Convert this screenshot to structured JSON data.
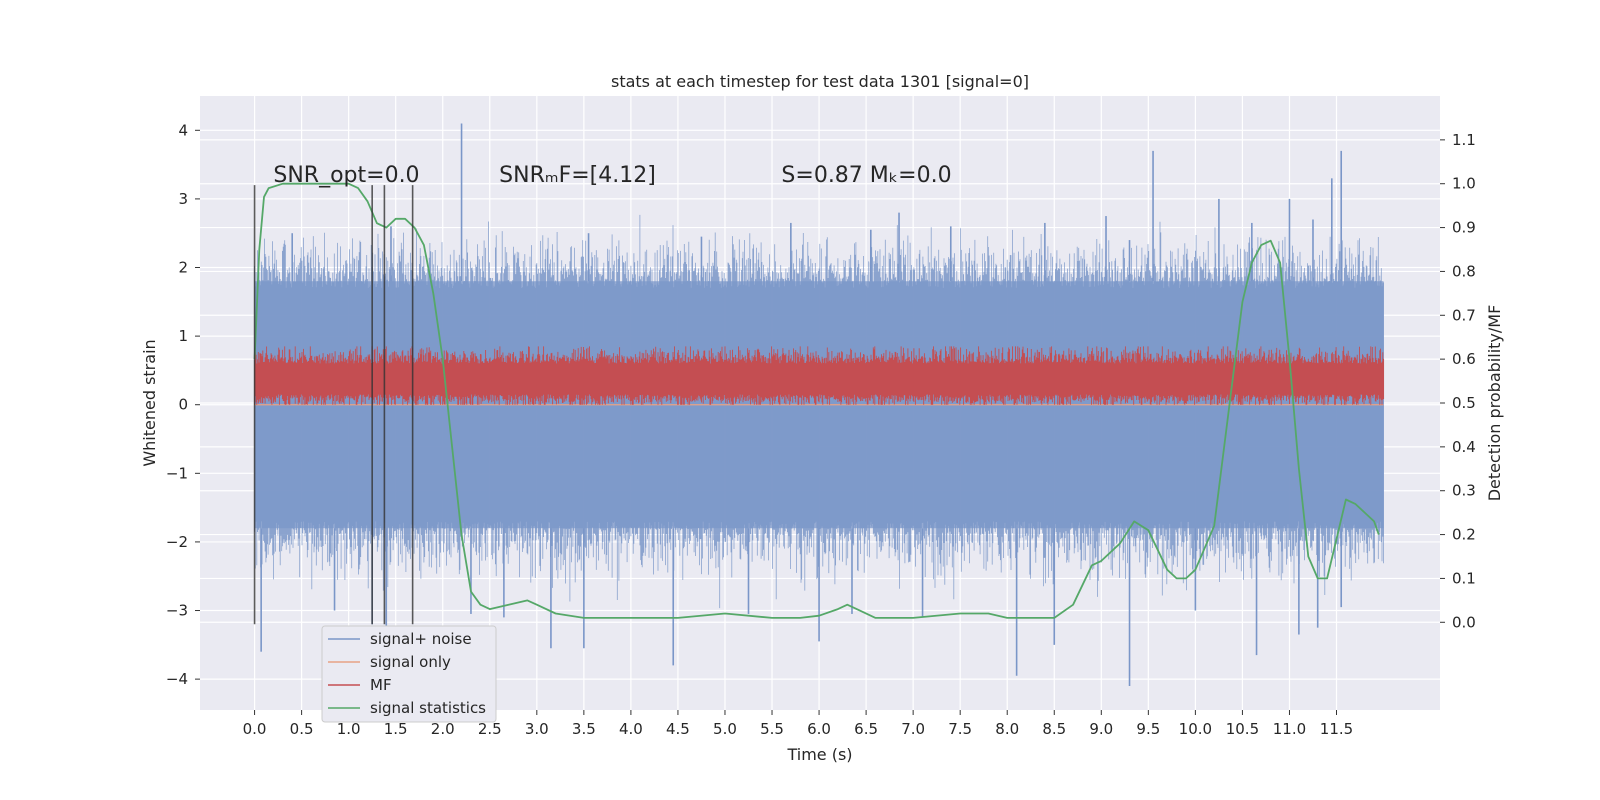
{
  "chart_data": {
    "type": "line",
    "title": "stats at each timestep for test data 1301 [signal=0]",
    "xlabel": "Time (s)",
    "ylabel": "Whitened strain",
    "ylabel_right": "Detection probability/MF",
    "xlim": [
      -0.58,
      12.6
    ],
    "ylim": [
      -4.45,
      4.5
    ],
    "ylim_right": [
      -0.2,
      1.2
    ],
    "x_ticks": [
      0.0,
      0.5,
      1.0,
      1.5,
      2.0,
      2.5,
      3.0,
      3.5,
      4.0,
      4.5,
      5.0,
      5.5,
      6.0,
      6.5,
      7.0,
      7.5,
      8.0,
      8.5,
      9.0,
      9.5,
      10.0,
      10.5,
      11.0,
      11.5
    ],
    "x_tick_labels": [
      "0.0",
      "0.5",
      "1.0",
      "1.5",
      "2.0",
      "2.5",
      "3.0",
      "3.5",
      "4.0",
      "4.5",
      "5.0",
      "5.5",
      "6.0",
      "6.5",
      "7.0",
      "7.5",
      "8.0",
      "8.5",
      "9.0",
      "9.5",
      "10.0",
      "10.5",
      "11.0",
      "11.5"
    ],
    "y_ticks": [
      -4,
      -3,
      -2,
      -1,
      0,
      1,
      2,
      3,
      4
    ],
    "y_tick_labels": [
      "−4",
      "−3",
      "−2",
      "−1",
      "0",
      "1",
      "2",
      "3",
      "4"
    ],
    "y_ticks_right": [
      0.0,
      0.1,
      0.2,
      0.3,
      0.4,
      0.5,
      0.6,
      0.7,
      0.8,
      0.9,
      1.0,
      1.1
    ],
    "y_tick_labels_right": [
      "0.0",
      "0.1",
      "0.2",
      "0.3",
      "0.4",
      "0.5",
      "0.6",
      "0.7",
      "0.8",
      "0.9",
      "1.0",
      "1.1"
    ],
    "grid": true,
    "legend_position": "lower-left",
    "series": [
      {
        "name": "signal+ noise",
        "color": "#7a96c8",
        "axis": "left",
        "x_range": [
          0.0,
          12.0
        ],
        "band": [
          -1.8,
          1.8
        ],
        "spike_high": [
          [
            0.4,
            2.5
          ],
          [
            1.45,
            2.6
          ],
          [
            2.2,
            4.1
          ],
          [
            3.55,
            2.5
          ],
          [
            4.75,
            2.45
          ],
          [
            5.7,
            2.65
          ],
          [
            6.55,
            2.55
          ],
          [
            6.85,
            2.8
          ],
          [
            7.4,
            2.6
          ],
          [
            8.4,
            2.65
          ],
          [
            9.05,
            2.75
          ],
          [
            9.3,
            2.4
          ],
          [
            9.55,
            3.7
          ],
          [
            10.25,
            3.0
          ],
          [
            10.6,
            2.65
          ],
          [
            11.0,
            3.0
          ],
          [
            11.25,
            2.7
          ],
          [
            11.45,
            3.3
          ],
          [
            11.55,
            3.7
          ]
        ],
        "spike_low": [
          [
            0.07,
            -3.6
          ],
          [
            0.85,
            -3.0
          ],
          [
            1.25,
            -3.2
          ],
          [
            1.4,
            -3.35
          ],
          [
            2.3,
            -3.05
          ],
          [
            2.65,
            -3.1
          ],
          [
            3.15,
            -3.55
          ],
          [
            3.5,
            -3.55
          ],
          [
            4.45,
            -3.8
          ],
          [
            5.25,
            -3.05
          ],
          [
            6.0,
            -3.45
          ],
          [
            6.35,
            -3.05
          ],
          [
            7.1,
            -3.1
          ],
          [
            8.1,
            -3.95
          ],
          [
            8.5,
            -3.5
          ],
          [
            9.3,
            -4.1
          ],
          [
            10.0,
            -3.0
          ],
          [
            10.65,
            -3.65
          ],
          [
            11.1,
            -3.35
          ],
          [
            11.3,
            -3.25
          ],
          [
            11.55,
            -2.95
          ]
        ]
      },
      {
        "name": "signal only",
        "color": "#e8a284",
        "axis": "left",
        "x": [
          0.0,
          12.0
        ],
        "y": [
          0.0,
          0.0
        ]
      },
      {
        "name": "MF",
        "color": "#c44e52",
        "axis": "left",
        "x_range": [
          0.0,
          12.0
        ],
        "band": [
          0.0,
          0.85
        ],
        "typical": [
          0.15,
          0.6
        ]
      },
      {
        "name": "signal statistics",
        "color": "#55a868",
        "axis": "right",
        "x": [
          0.0,
          0.05,
          0.1,
          0.15,
          0.3,
          0.5,
          0.8,
          1.0,
          1.1,
          1.2,
          1.3,
          1.4,
          1.5,
          1.6,
          1.7,
          1.8,
          1.9,
          2.0,
          2.1,
          2.2,
          2.3,
          2.4,
          2.5,
          2.7,
          2.9,
          3.0,
          3.2,
          3.5,
          4.0,
          4.5,
          5.0,
          5.5,
          5.8,
          6.0,
          6.2,
          6.3,
          6.4,
          6.6,
          7.0,
          7.5,
          7.8,
          8.0,
          8.5,
          8.7,
          8.9,
          9.0,
          9.2,
          9.35,
          9.5,
          9.7,
          9.8,
          9.9,
          10.0,
          10.2,
          10.4,
          10.5,
          10.6,
          10.7,
          10.8,
          10.9,
          11.0,
          11.1,
          11.2,
          11.3,
          11.4,
          11.5,
          11.6,
          11.7,
          11.8,
          11.9,
          11.95
        ],
        "y": [
          0.6,
          0.85,
          0.97,
          0.99,
          1.0,
          1.0,
          1.0,
          1.0,
          0.99,
          0.96,
          0.91,
          0.9,
          0.92,
          0.92,
          0.9,
          0.86,
          0.75,
          0.6,
          0.4,
          0.2,
          0.07,
          0.04,
          0.03,
          0.04,
          0.05,
          0.04,
          0.02,
          0.01,
          0.01,
          0.01,
          0.02,
          0.01,
          0.01,
          0.015,
          0.03,
          0.04,
          0.03,
          0.01,
          0.01,
          0.02,
          0.02,
          0.01,
          0.01,
          0.04,
          0.13,
          0.14,
          0.18,
          0.23,
          0.21,
          0.12,
          0.1,
          0.1,
          0.12,
          0.22,
          0.56,
          0.73,
          0.82,
          0.86,
          0.87,
          0.82,
          0.6,
          0.35,
          0.15,
          0.1,
          0.1,
          0.19,
          0.28,
          0.27,
          0.25,
          0.23,
          0.2
        ]
      }
    ],
    "markers": {
      "color": "#333333",
      "x": [
        0.0,
        1.25,
        1.38,
        1.68
      ],
      "y_range": [
        -3.2,
        3.2
      ]
    },
    "annotations": [
      {
        "id": "snr-opt",
        "x": 0.2,
        "y": 3.25,
        "text": "SNR_opt=0.0"
      },
      {
        "id": "snr-mf",
        "x": 2.6,
        "y": 3.25,
        "text": "SNRₘF=[4.12]"
      },
      {
        "id": "s-mc",
        "x": 5.6,
        "y": 3.25,
        "text": "S=0.87  Mₖ=0.0"
      }
    ]
  }
}
